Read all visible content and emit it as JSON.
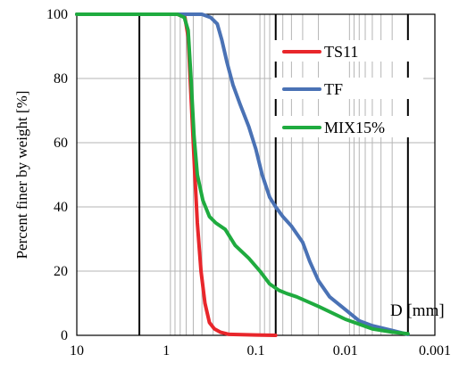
{
  "chart_data": {
    "type": "line",
    "x_scale": "log",
    "x_reversed": true,
    "xlim": [
      10,
      0.001
    ],
    "ylim": [
      0,
      100
    ],
    "xticks": [
      "10",
      "1",
      "0.1",
      "0.01",
      "0.001"
    ],
    "yticks": [
      "0",
      "20",
      "40",
      "60",
      "80",
      "100"
    ],
    "ylabel": "Percent finer by weight [%]",
    "xlabel": "D [mm]",
    "grid": true,
    "legend_position": "top-right",
    "series": [
      {
        "name": "TS11",
        "color": "#e8262b",
        "points": [
          [
            10,
            100
          ],
          [
            1,
            100
          ],
          [
            0.75,
            100
          ],
          [
            0.62,
            99
          ],
          [
            0.57,
            93
          ],
          [
            0.52,
            70
          ],
          [
            0.48,
            50
          ],
          [
            0.45,
            35
          ],
          [
            0.41,
            20
          ],
          [
            0.37,
            10
          ],
          [
            0.33,
            4
          ],
          [
            0.29,
            2
          ],
          [
            0.25,
            1
          ],
          [
            0.2,
            0.3
          ],
          [
            0.1,
            0.1
          ],
          [
            0.06,
            0
          ]
        ]
      },
      {
        "name": "TF",
        "color": "#4a72b5",
        "points": [
          [
            10,
            100
          ],
          [
            1,
            100
          ],
          [
            0.4,
            100
          ],
          [
            0.32,
            99
          ],
          [
            0.27,
            97
          ],
          [
            0.24,
            92
          ],
          [
            0.21,
            85
          ],
          [
            0.18,
            78
          ],
          [
            0.15,
            72
          ],
          [
            0.12,
            65
          ],
          [
            0.1,
            58
          ],
          [
            0.085,
            50
          ],
          [
            0.07,
            43
          ],
          [
            0.06,
            40
          ],
          [
            0.05,
            37
          ],
          [
            0.04,
            34
          ],
          [
            0.03,
            29
          ],
          [
            0.025,
            23
          ],
          [
            0.02,
            17
          ],
          [
            0.015,
            12
          ],
          [
            0.01,
            8
          ],
          [
            0.007,
            4.5
          ],
          [
            0.005,
            3
          ],
          [
            0.003,
            1.5
          ],
          [
            0.002,
            0.3
          ]
        ]
      },
      {
        "name": "MIX15%",
        "color": "#1fab3f",
        "points": [
          [
            10,
            100
          ],
          [
            1,
            100
          ],
          [
            0.75,
            100
          ],
          [
            0.63,
            99
          ],
          [
            0.57,
            95
          ],
          [
            0.53,
            80
          ],
          [
            0.49,
            62
          ],
          [
            0.45,
            50
          ],
          [
            0.39,
            42
          ],
          [
            0.33,
            37
          ],
          [
            0.28,
            35
          ],
          [
            0.22,
            33
          ],
          [
            0.17,
            28
          ],
          [
            0.12,
            24
          ],
          [
            0.09,
            20
          ],
          [
            0.07,
            16
          ],
          [
            0.055,
            14
          ],
          [
            0.045,
            13
          ],
          [
            0.035,
            12
          ],
          [
            0.02,
            9
          ],
          [
            0.01,
            5
          ],
          [
            0.005,
            2
          ],
          [
            0.003,
            1
          ],
          [
            0.002,
            0.5
          ]
        ]
      }
    ]
  }
}
